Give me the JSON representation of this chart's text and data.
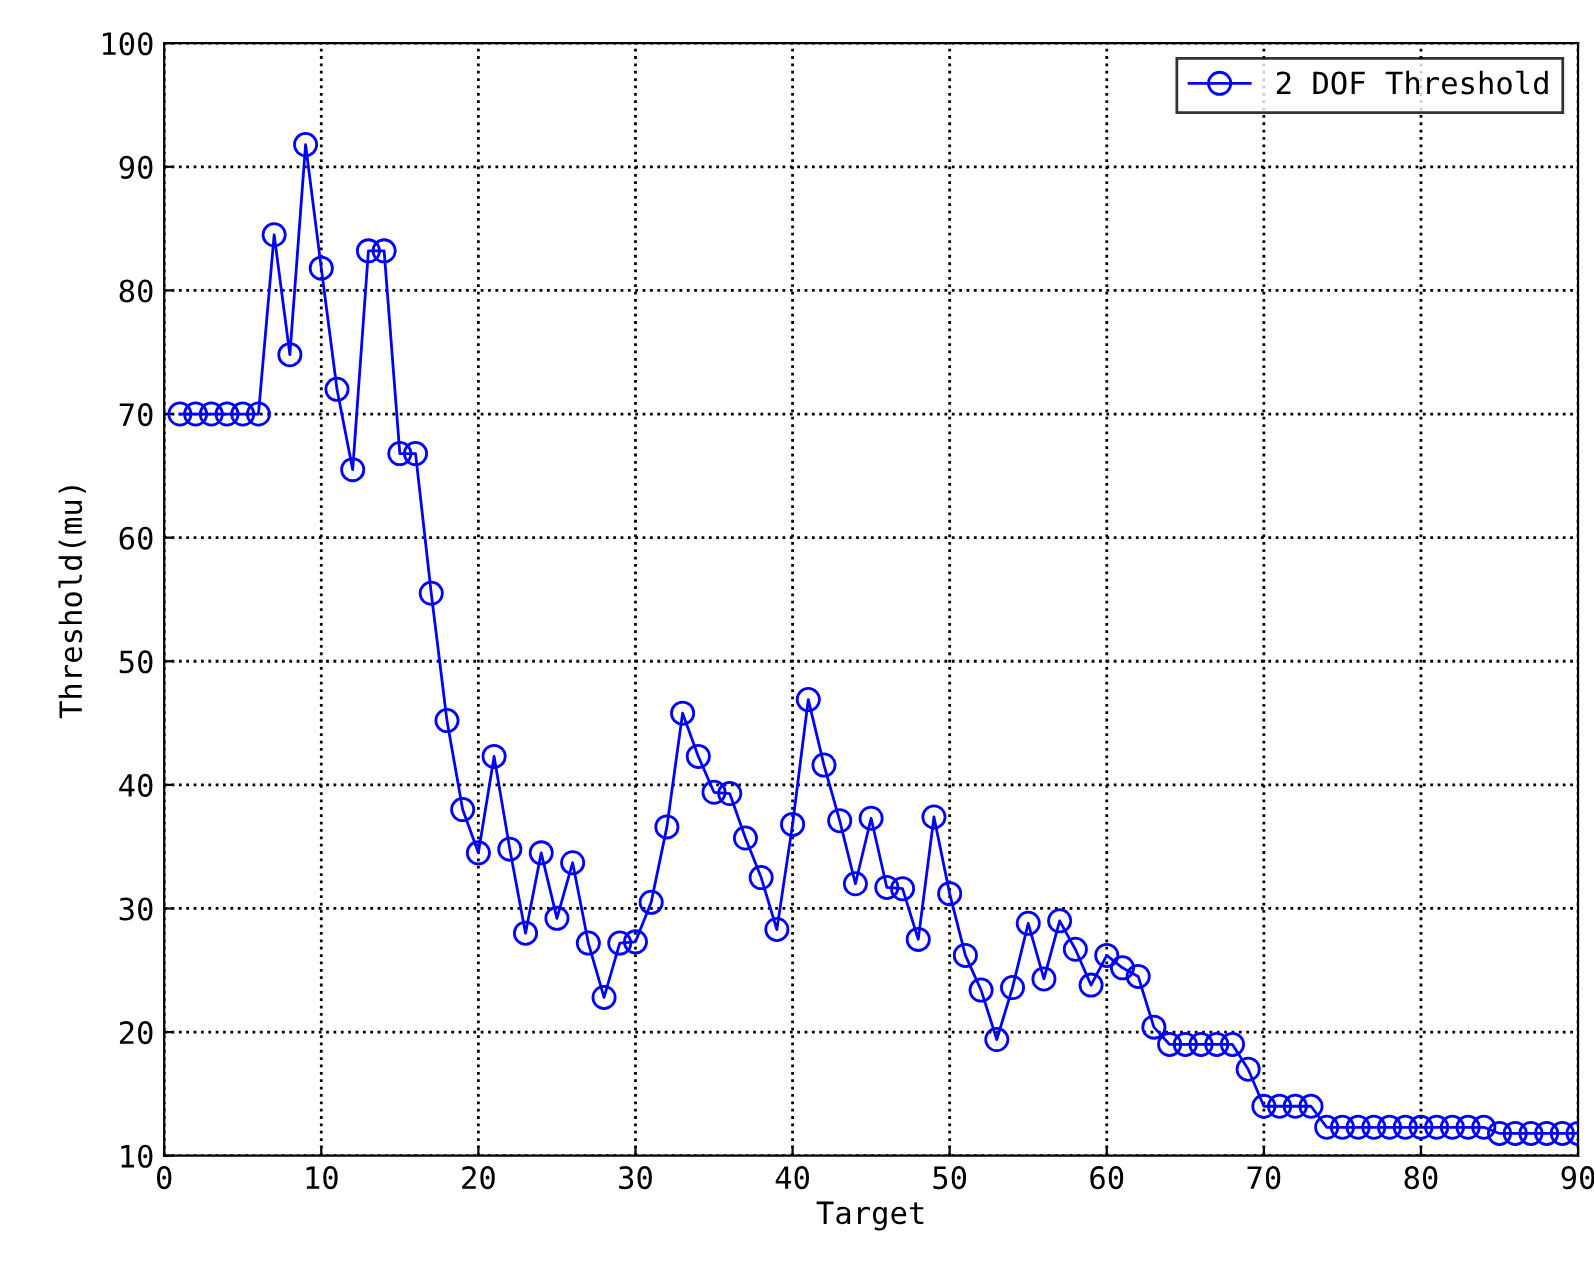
{
  "chart_data": {
    "type": "line",
    "xlabel": "Target",
    "ylabel": "Threshold(mu)",
    "x": [
      1,
      2,
      3,
      4,
      5,
      6,
      7,
      8,
      9,
      10,
      11,
      12,
      13,
      14,
      15,
      16,
      17,
      18,
      19,
      20,
      21,
      22,
      23,
      24,
      25,
      26,
      27,
      28,
      29,
      30,
      31,
      32,
      33,
      34,
      35,
      36,
      37,
      38,
      39,
      40,
      41,
      42,
      43,
      44,
      45,
      46,
      47,
      48,
      49,
      50,
      51,
      52,
      53,
      54,
      55,
      56,
      57,
      58,
      59,
      60,
      61,
      62,
      63,
      64,
      65,
      66,
      67,
      68,
      69,
      70,
      71,
      72,
      73,
      74,
      75,
      76,
      77,
      78,
      79,
      80,
      81,
      82,
      83,
      84,
      85,
      86,
      87,
      88,
      89,
      90
    ],
    "series": [
      {
        "name": "2 DOF Threshold",
        "color": "#0000ff",
        "values": [
          70,
          70,
          70,
          70,
          70,
          70,
          84.5,
          74.8,
          91.8,
          81.8,
          72,
          65.5,
          83.2,
          83.2,
          66.8,
          66.8,
          55.5,
          45.2,
          38,
          34.5,
          42.3,
          34.8,
          28,
          34.5,
          29.2,
          33.7,
          27.2,
          22.8,
          27.2,
          27.3,
          30.5,
          36.6,
          45.8,
          42.3,
          39.4,
          39.3,
          35.7,
          32.5,
          28.3,
          36.8,
          46.9,
          41.6,
          37.1,
          32,
          37.3,
          31.7,
          31.6,
          27.5,
          37.4,
          31.2,
          26.2,
          23.4,
          19.4,
          23.6,
          28.8,
          24.3,
          29,
          26.7,
          23.8,
          26.2,
          25.2,
          24.5,
          20.4,
          19,
          19,
          19,
          19,
          19,
          17,
          14,
          14,
          14,
          14,
          12.3,
          12.3,
          12.3,
          12.3,
          12.3,
          12.3,
          12.3,
          12.3,
          12.3,
          12.3,
          12.3,
          11.8,
          11.8,
          11.8,
          11.8,
          11.8,
          11.8
        ]
      }
    ],
    "xlim": [
      0,
      90
    ],
    "xticks": [
      0,
      10,
      20,
      30,
      40,
      50,
      60,
      70,
      80,
      90
    ],
    "ylim": [
      10,
      100
    ],
    "yticks": [
      10,
      20,
      30,
      40,
      50,
      60,
      70,
      80,
      90,
      100
    ],
    "grid": true,
    "legend": "top right",
    "marker": "circle",
    "line_style": "solid"
  }
}
